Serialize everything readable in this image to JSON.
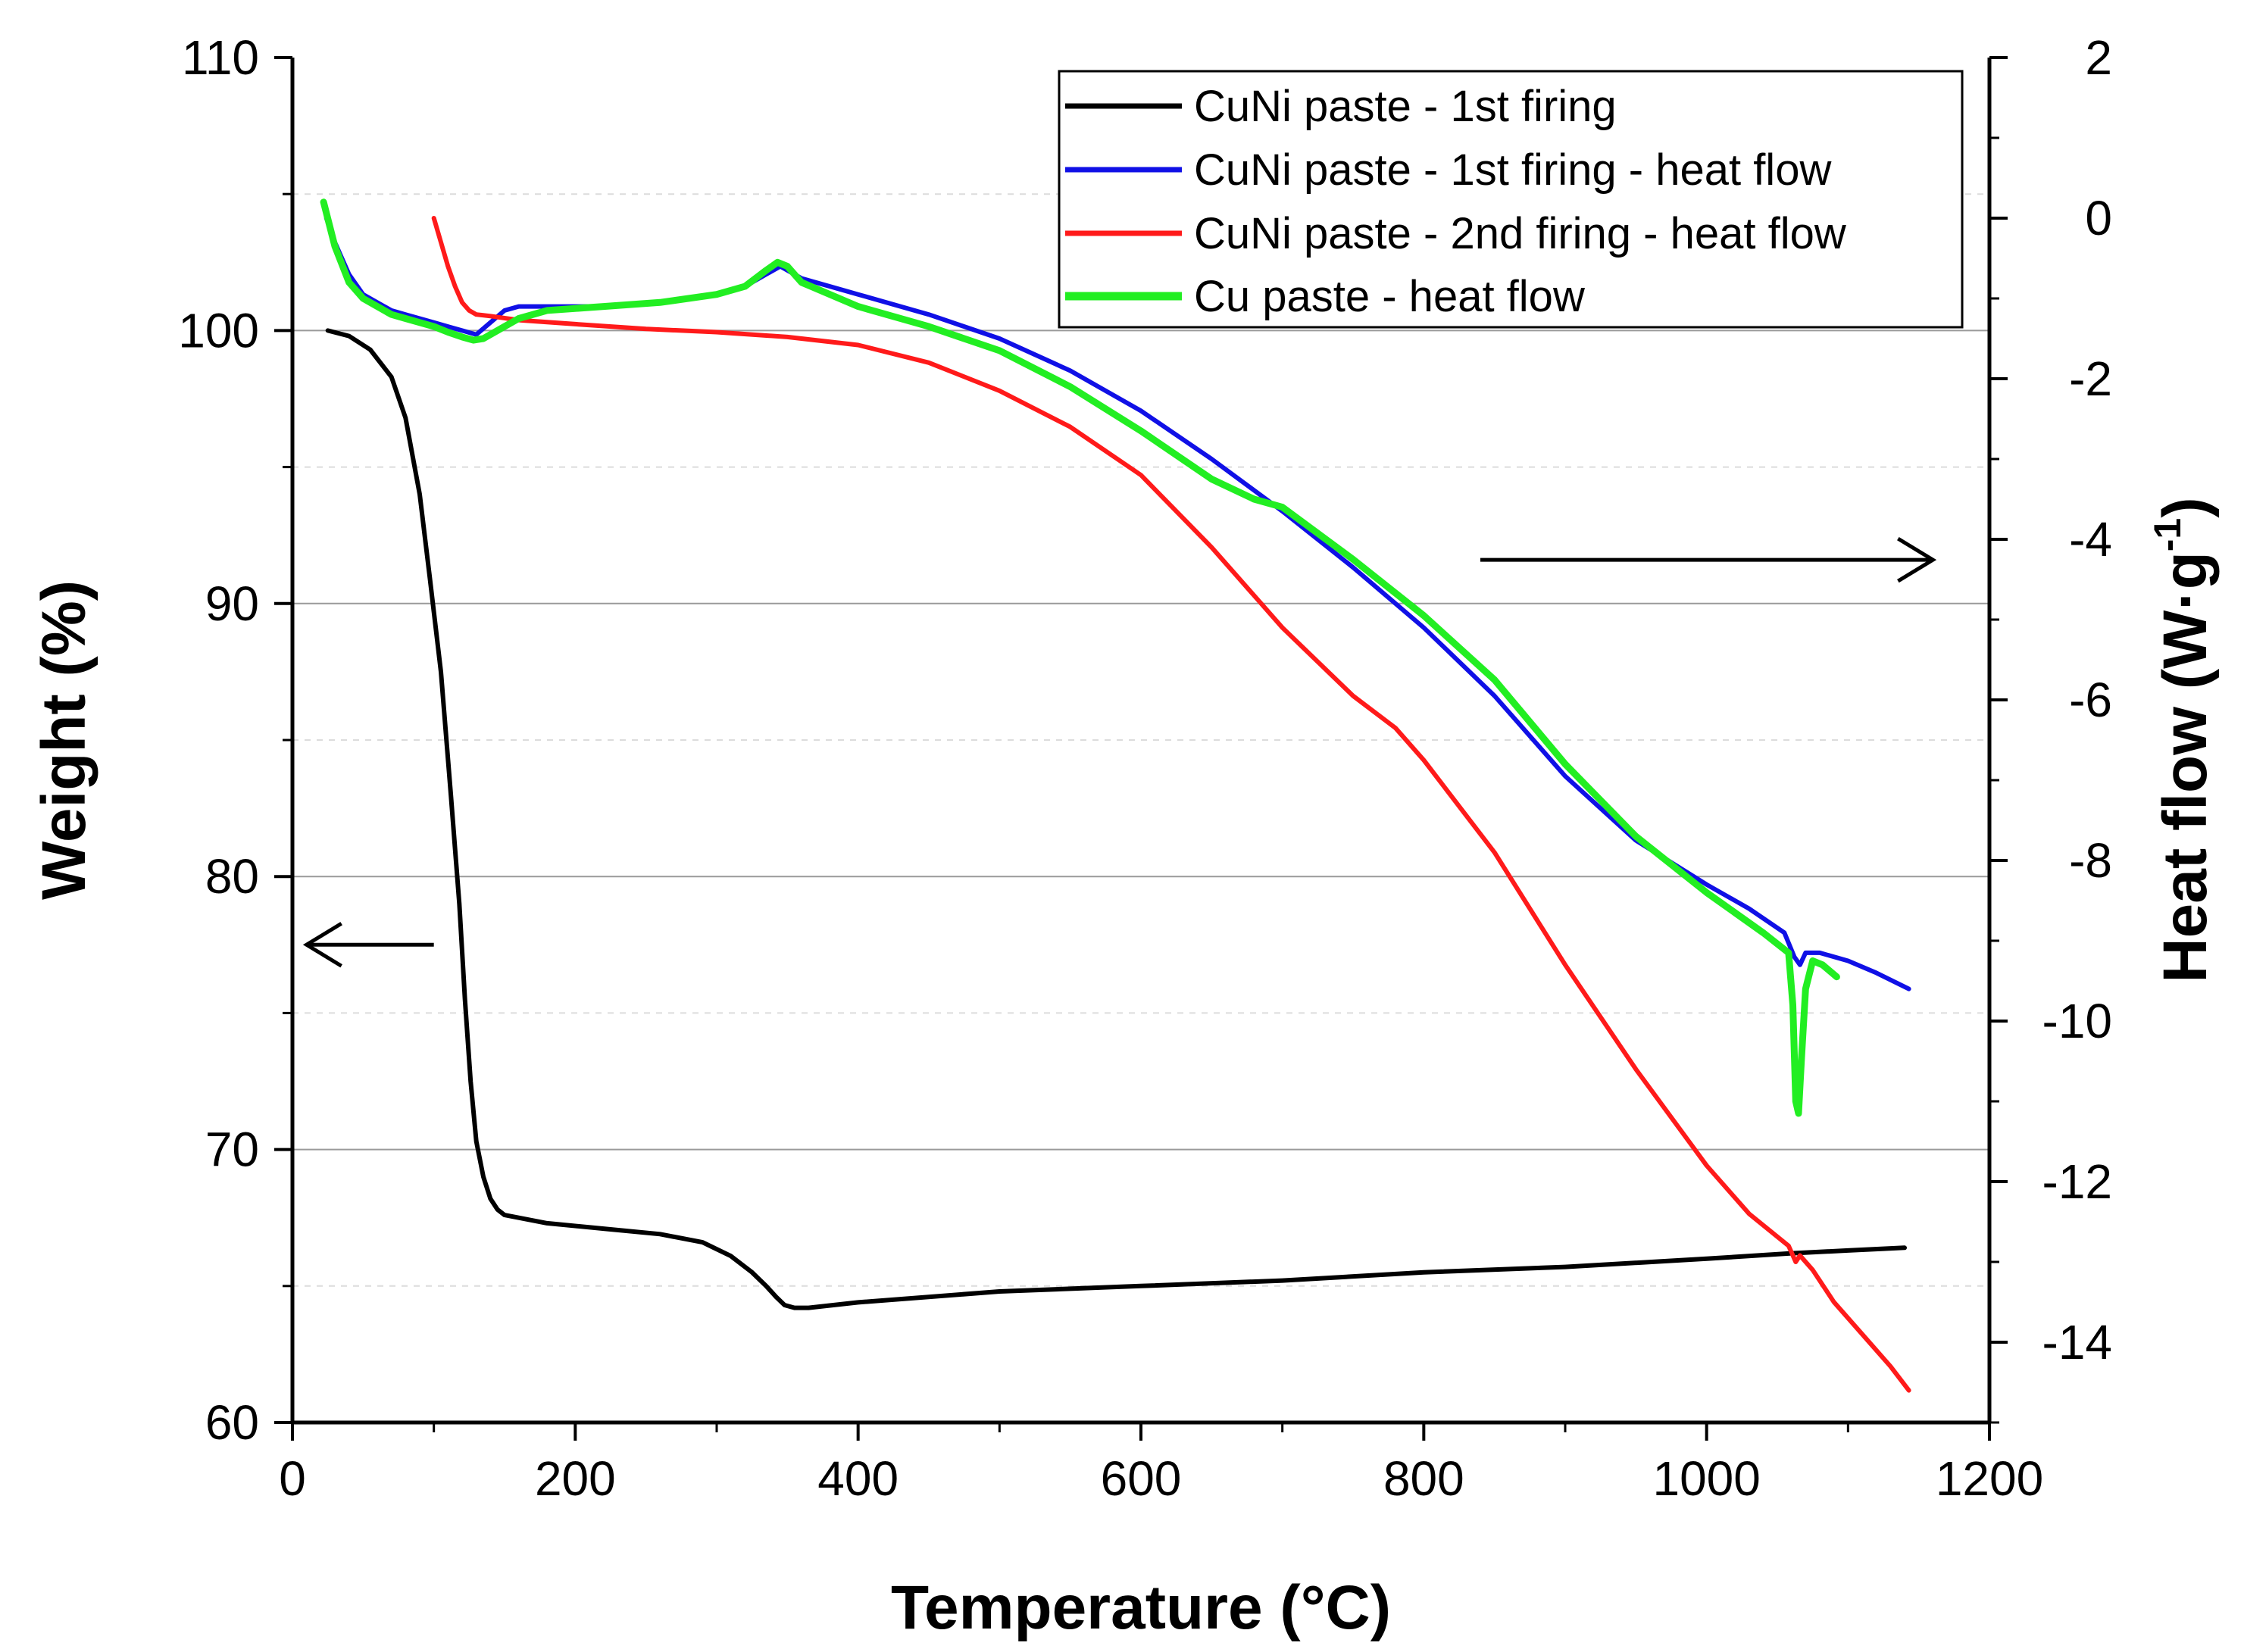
{
  "chart_data": {
    "type": "line",
    "title": "",
    "xlabel": "Temperature (°C)",
    "ylabel_left": "Weight (%)",
    "ylabel_right_main": "Heat flow (W·g",
    "ylabel_right_sup": "-1",
    "ylabel_right_close": ")",
    "xlim": [
      0,
      1200
    ],
    "ylim_left": [
      60,
      110
    ],
    "ylim_right": [
      -15,
      2
    ],
    "x_ticks": [
      0,
      200,
      400,
      600,
      800,
      1000,
      1200
    ],
    "y_left_ticks": [
      60,
      70,
      80,
      90,
      100,
      110
    ],
    "y_right_ticks": [
      2,
      0,
      -2,
      -4,
      -6,
      -8,
      -10,
      -12,
      -14
    ],
    "grid": "horizontal",
    "legend_position": "top-right",
    "arrows": [
      {
        "points_to": "left axis",
        "at_temperature": [
          100,
          10
        ],
        "at_weight": 77.5
      },
      {
        "points_to": "right axis",
        "at_temperature": [
          840,
          1160
        ],
        "at_weight": 91.6
      }
    ],
    "series": [
      {
        "name": "CuNi paste - 1st firing",
        "axis": "left",
        "color": "#000000",
        "x": [
          25,
          40,
          55,
          70,
          80,
          90,
          97,
          105,
          112,
          118,
          122,
          126,
          130,
          135,
          140,
          145,
          150,
          160,
          180,
          220,
          260,
          290,
          310,
          325,
          335,
          342,
          348,
          355,
          365,
          400,
          500,
          600,
          700,
          800,
          900,
          1000,
          1060,
          1100,
          1140
        ],
        "y": [
          100,
          99.8,
          99.3,
          98.3,
          96.8,
          94,
          91,
          87.5,
          83,
          79,
          75.5,
          72.5,
          70.3,
          69,
          68.2,
          67.8,
          67.6,
          67.5,
          67.3,
          67.1,
          66.9,
          66.6,
          66.1,
          65.5,
          65,
          64.6,
          64.3,
          64.2,
          64.2,
          64.4,
          64.8,
          65,
          65.2,
          65.5,
          65.7,
          66,
          66.2,
          66.3,
          66.4
        ]
      },
      {
        "name": "CuNi paste - 1st firing - heat flow",
        "axis": "right",
        "color": "#1010e6",
        "x": [
          24,
          30,
          40,
          50,
          60,
          70,
          80,
          90,
          100,
          110,
          120,
          130,
          140,
          150,
          160,
          180,
          220,
          260,
          300,
          320,
          335,
          345,
          350,
          360,
          400,
          450,
          500,
          550,
          600,
          650,
          700,
          750,
          800,
          850,
          900,
          950,
          1000,
          1030,
          1055,
          1062,
          1066,
          1070,
          1080,
          1100,
          1120,
          1143
        ],
        "y": [
          0,
          -0.3,
          -0.7,
          -0.95,
          -1.05,
          -1.15,
          -1.2,
          -1.25,
          -1.3,
          -1.35,
          -1.4,
          -1.45,
          -1.3,
          -1.15,
          -1.1,
          -1.1,
          -1.1,
          -1.05,
          -0.95,
          -0.85,
          -0.7,
          -0.6,
          -0.65,
          -0.75,
          -0.95,
          -1.2,
          -1.5,
          -1.9,
          -2.4,
          -3,
          -3.65,
          -4.35,
          -5.1,
          -5.95,
          -6.95,
          -7.75,
          -8.3,
          -8.6,
          -8.9,
          -9.2,
          -9.3,
          -9.15,
          -9.15,
          -9.25,
          -9.4,
          -9.6
        ]
      },
      {
        "name": "CuNi paste - 2nd firing - heat flow",
        "axis": "right",
        "color": "#ff1a1a",
        "x": [
          100,
          105,
          110,
          115,
          120,
          125,
          130,
          140,
          160,
          200,
          250,
          300,
          350,
          400,
          450,
          500,
          550,
          600,
          650,
          700,
          750,
          780,
          800,
          850,
          900,
          950,
          1000,
          1030,
          1058,
          1063,
          1066,
          1075,
          1090,
          1110,
          1130,
          1143
        ],
        "y": [
          0,
          -0.3,
          -0.6,
          -0.85,
          -1.05,
          -1.15,
          -1.2,
          -1.22,
          -1.27,
          -1.32,
          -1.38,
          -1.42,
          -1.48,
          -1.58,
          -1.8,
          -2.15,
          -2.6,
          -3.2,
          -4.1,
          -5.1,
          -5.95,
          -6.35,
          -6.75,
          -7.9,
          -9.3,
          -10.6,
          -11.8,
          -12.4,
          -12.8,
          -13,
          -12.92,
          -13.1,
          -13.5,
          -13.9,
          -14.3,
          -14.6
        ]
      },
      {
        "name": "Cu paste - heat flow",
        "axis": "right",
        "color": "#22ee22",
        "x": [
          22,
          30,
          40,
          50,
          60,
          70,
          80,
          90,
          100,
          110,
          120,
          128,
          135,
          140,
          150,
          160,
          180,
          220,
          260,
          300,
          320,
          335,
          343,
          350,
          360,
          400,
          450,
          500,
          550,
          600,
          650,
          680,
          700,
          750,
          800,
          850,
          900,
          950,
          1000,
          1040,
          1058,
          1061,
          1063,
          1065,
          1067,
          1070,
          1075,
          1082,
          1092
        ],
        "y": [
          0.2,
          -0.35,
          -0.8,
          -1,
          -1.1,
          -1.2,
          -1.25,
          -1.3,
          -1.35,
          -1.42,
          -1.48,
          -1.52,
          -1.5,
          -1.45,
          -1.35,
          -1.25,
          -1.15,
          -1.1,
          -1.05,
          -0.95,
          -0.85,
          -0.65,
          -0.55,
          -0.6,
          -0.8,
          -1.1,
          -1.35,
          -1.65,
          -2.1,
          -2.65,
          -3.25,
          -3.5,
          -3.6,
          -4.25,
          -4.95,
          -5.75,
          -6.8,
          -7.7,
          -8.4,
          -8.9,
          -9.15,
          -9.8,
          -11,
          -11.15,
          -10.5,
          -9.6,
          -9.25,
          -9.3,
          -9.45
        ]
      }
    ]
  }
}
